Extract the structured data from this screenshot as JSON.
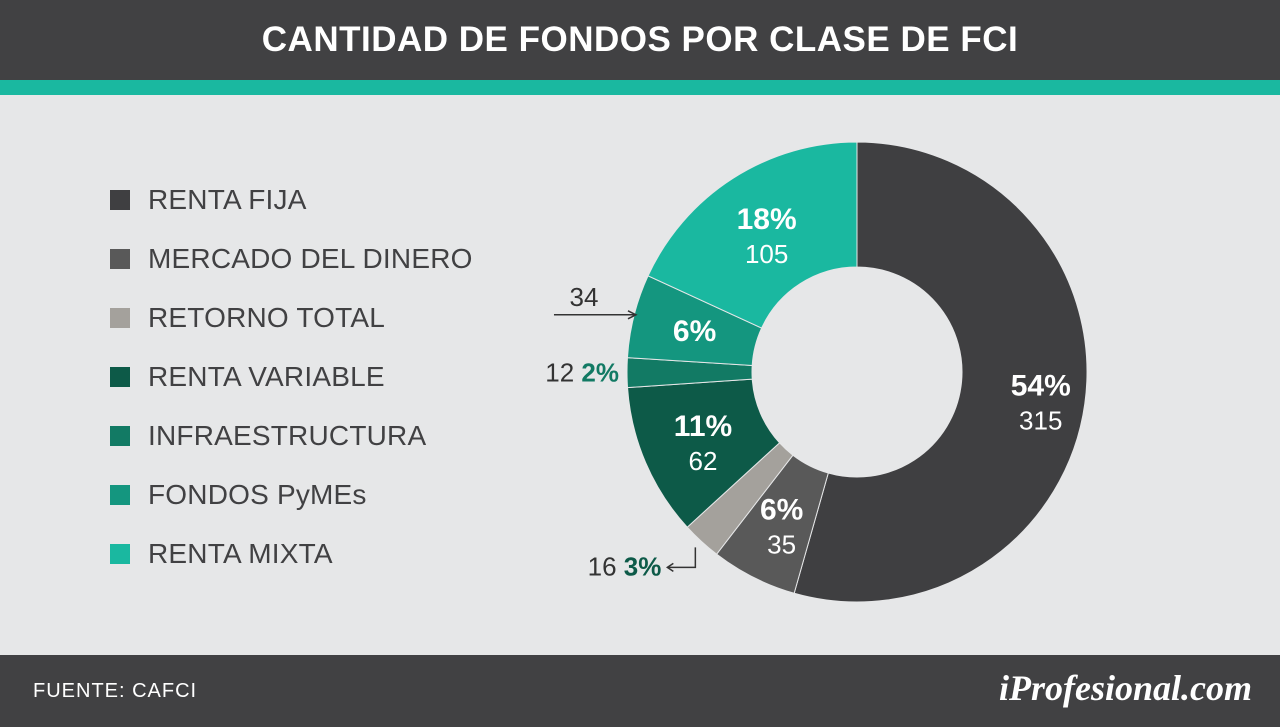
{
  "header": {
    "title": "CANTIDAD DE FONDOS POR CLASE DE FCI"
  },
  "footer": {
    "source": "FUENTE:  CAFCI",
    "brand": "iProfesional.com"
  },
  "colors": {
    "header_bg": "#414143",
    "accent_bar": "#1ab8a0",
    "background": "#e6e7e8"
  },
  "chart_data": {
    "type": "pie",
    "title": "CANTIDAD DE FONDOS POR CLASE DE FCI",
    "donut": true,
    "legend_position": "left",
    "series": [
      {
        "name": "RENTA FIJA",
        "value": 315,
        "percent_label": "54%",
        "color": "#3f3f41"
      },
      {
        "name": "MERCADO DEL DINERO",
        "value": 35,
        "percent_label": "6%",
        "color": "#595959"
      },
      {
        "name": "RETORNO TOTAL",
        "value": 16,
        "percent_label": "3%",
        "color": "#a4a19c"
      },
      {
        "name": "RENTA VARIABLE",
        "value": 62,
        "percent_label": "11%",
        "color": "#0d5a48"
      },
      {
        "name": "INFRAESTRUCTURA",
        "value": 12,
        "percent_label": "2%",
        "color": "#127a64"
      },
      {
        "name": "FONDOS PyMEs",
        "value": 34,
        "percent_label": "6%",
        "color": "#14967f"
      },
      {
        "name": "RENTA MIXTA",
        "value": 105,
        "percent_label": "18%",
        "color": "#1ab8a0"
      }
    ]
  }
}
